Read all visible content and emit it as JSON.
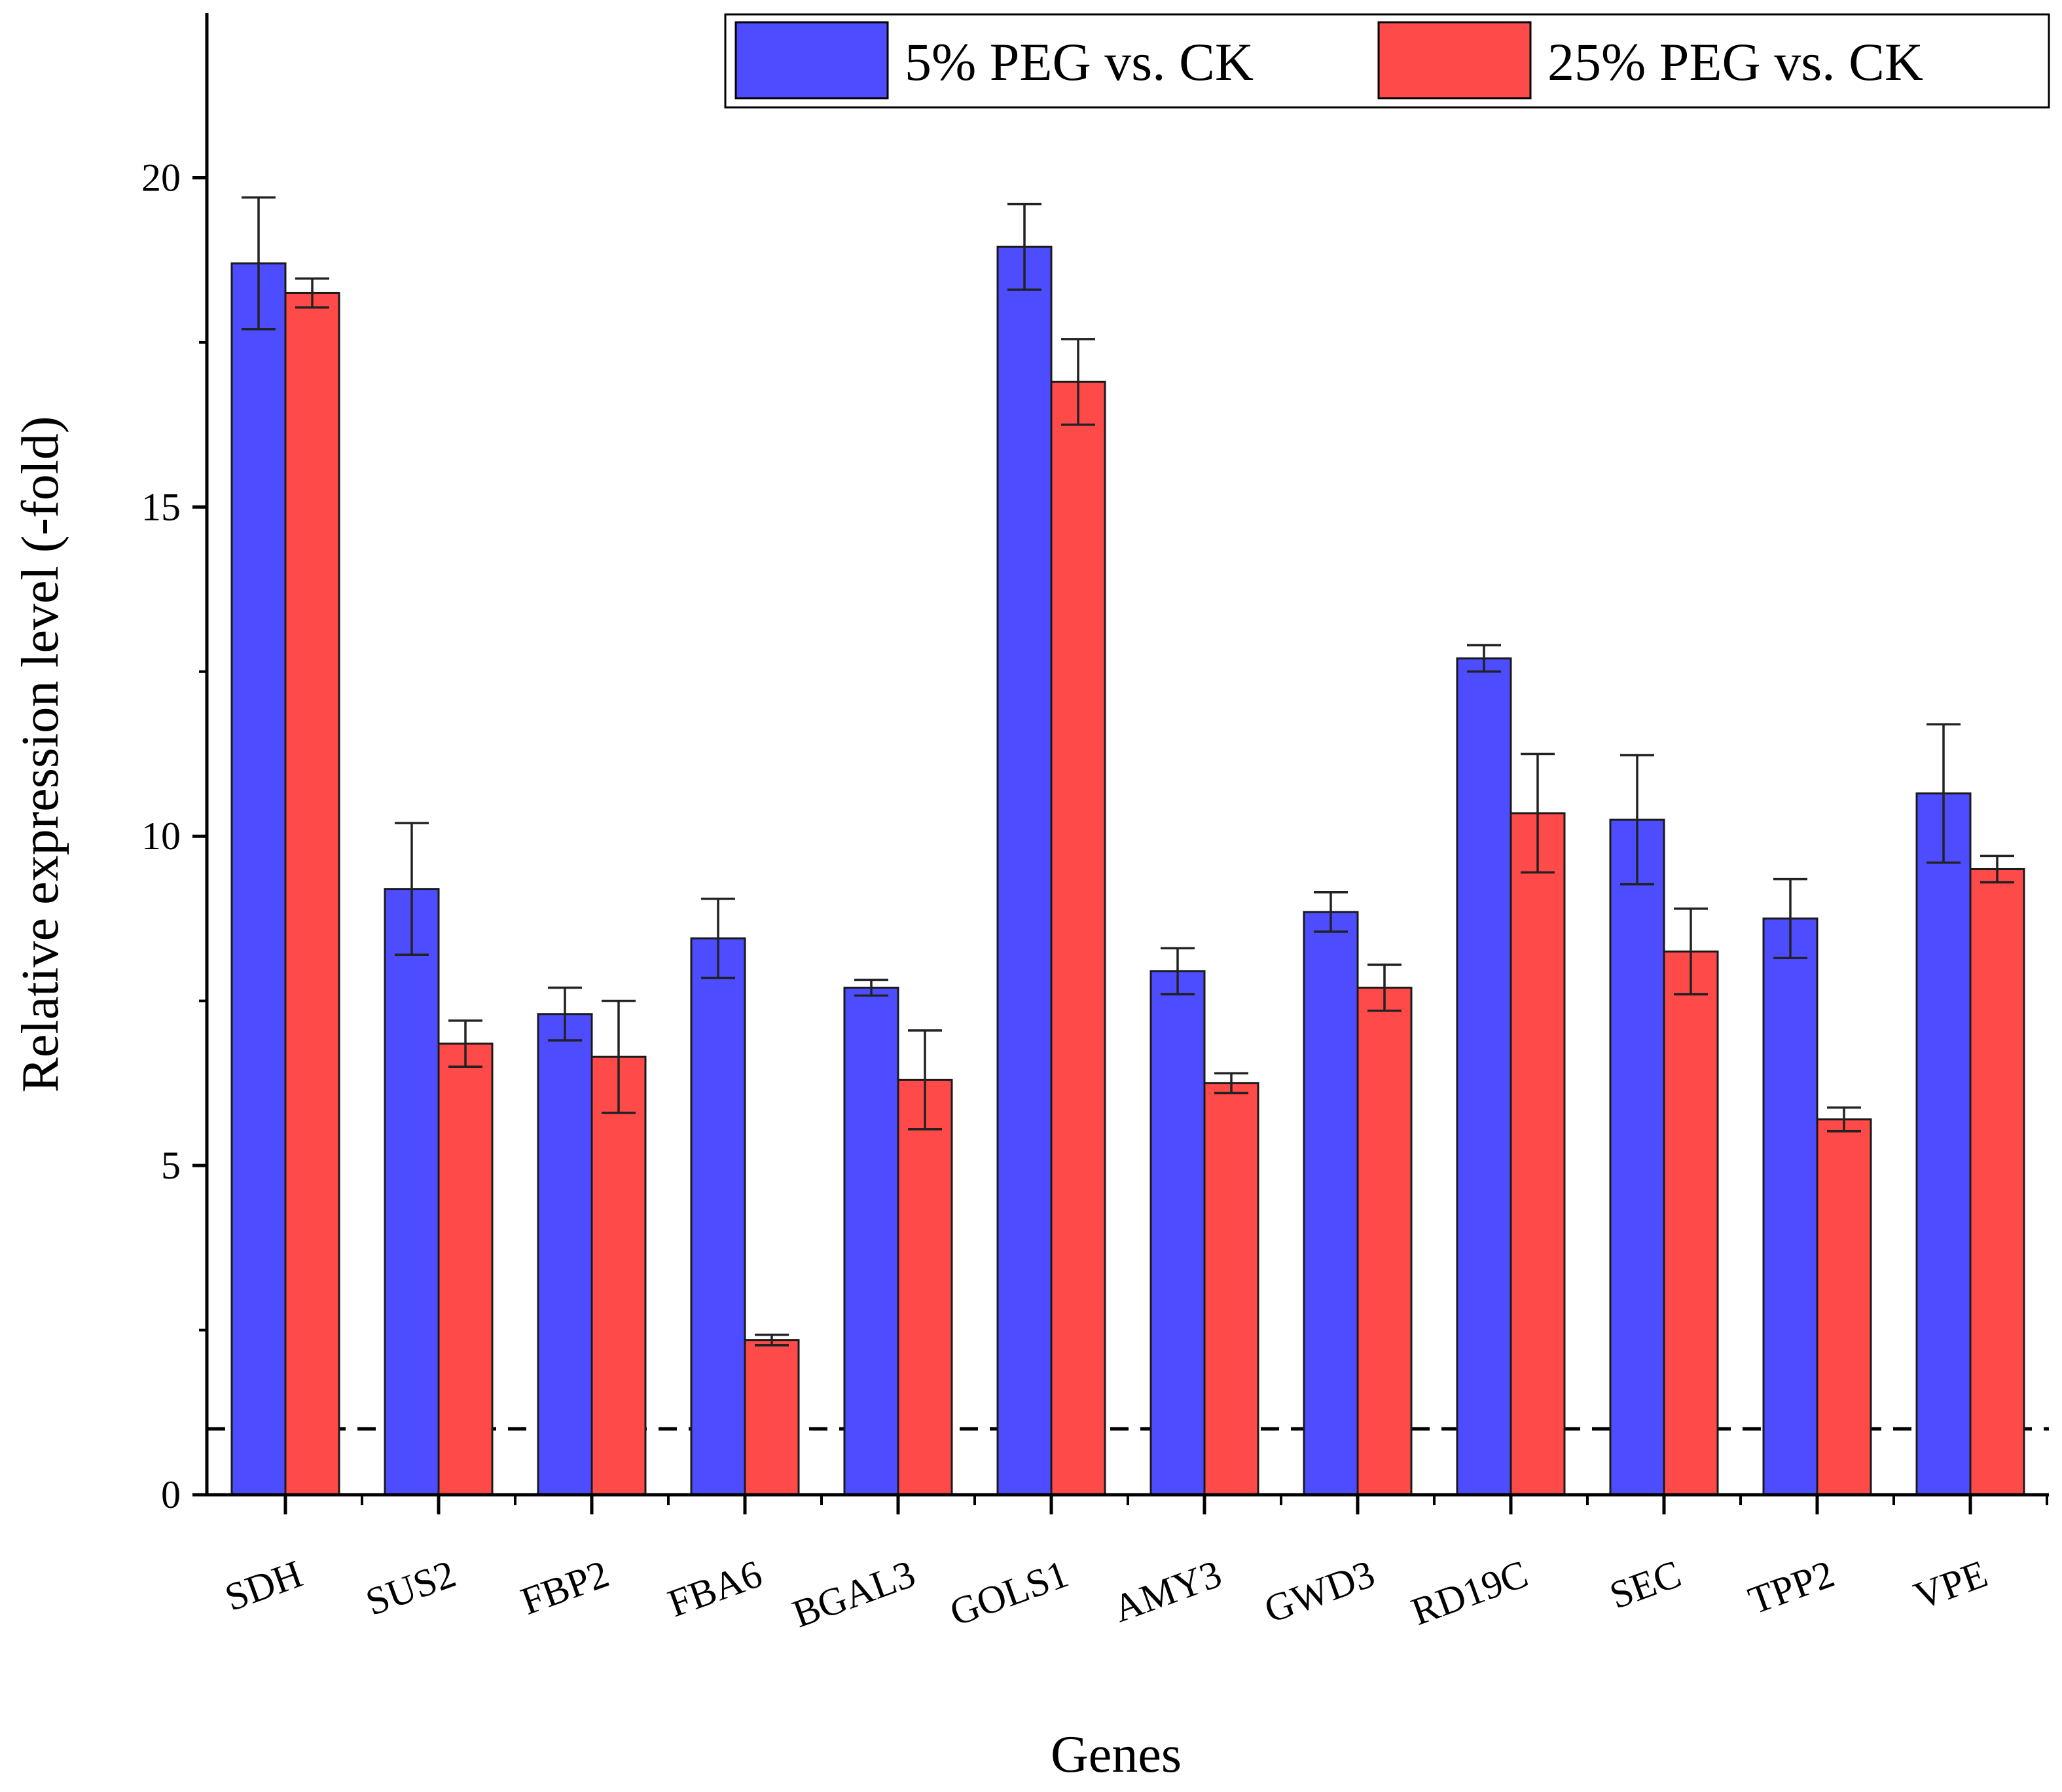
{
  "chart_data": {
    "type": "bar",
    "title": "",
    "xlabel": "Genes",
    "ylabel": "Relative expression level (-fold)",
    "ylim": [
      0,
      22.5
    ],
    "yticks": [
      0,
      5,
      10,
      15,
      20
    ],
    "reference_line": 1,
    "legend_position": "top-right",
    "categories": [
      "SDH",
      "SUS2",
      "FBP2",
      "FBA6",
      "BGAL3",
      "GOLS1",
      "AMY3",
      "GWD3",
      "RD19C",
      "SEC",
      "TPP2",
      "VPE"
    ],
    "series": [
      {
        "name": "5% PEG vs. CK",
        "color": "#4d4dff",
        "values": [
          18.7,
          9.2,
          7.3,
          8.45,
          7.7,
          18.95,
          7.95,
          8.85,
          12.7,
          10.25,
          8.75,
          10.65
        ],
        "errors": [
          1.0,
          1.0,
          0.4,
          0.6,
          0.12,
          0.65,
          0.35,
          0.3,
          0.2,
          0.98,
          0.6,
          1.05
        ]
      },
      {
        "name": "25% PEG vs. CK",
        "color": "#ff4a4a",
        "values": [
          18.25,
          6.85,
          6.65,
          2.35,
          6.3,
          16.9,
          6.25,
          7.7,
          10.35,
          8.25,
          5.7,
          9.5
        ],
        "errors": [
          0.22,
          0.35,
          0.85,
          0.08,
          0.75,
          0.65,
          0.15,
          0.35,
          0.9,
          0.65,
          0.18,
          0.2
        ]
      }
    ]
  }
}
